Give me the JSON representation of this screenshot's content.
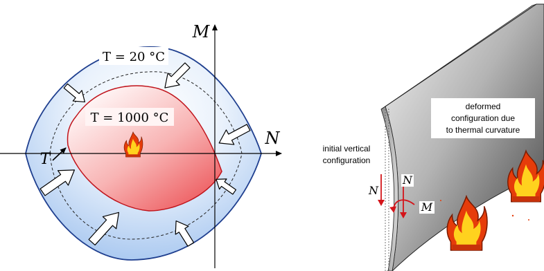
{
  "left_diagram": {
    "axis_m_label": "M",
    "axis_n_label": "N",
    "temperature_axis_label": "T",
    "outer_curve_label": "T = 20 °C",
    "inner_curve_label": "T = 1000 °C"
  },
  "right_diagram": {
    "initial_label_line1": "initial vertical",
    "initial_label_line2": "configuration",
    "deformed_label_line1": "deformed",
    "deformed_label_line2": "configuration due",
    "deformed_label_line3": "to thermal curvature",
    "force_label_left": "N",
    "force_label_right": "N",
    "moment_label": "M"
  },
  "colors": {
    "outer_stroke": "#1f3f8f",
    "outer_fill_light": "#ffffff",
    "outer_fill_dark": "#a9c8f0",
    "inner_stroke": "#c0141c",
    "inner_fill_light": "#fff2f2",
    "inner_fill_dark": "#ee5a5e",
    "arrow_red": "#d4141a",
    "flame_outer": "#e63c0a",
    "flame_inner": "#ffd21e"
  }
}
